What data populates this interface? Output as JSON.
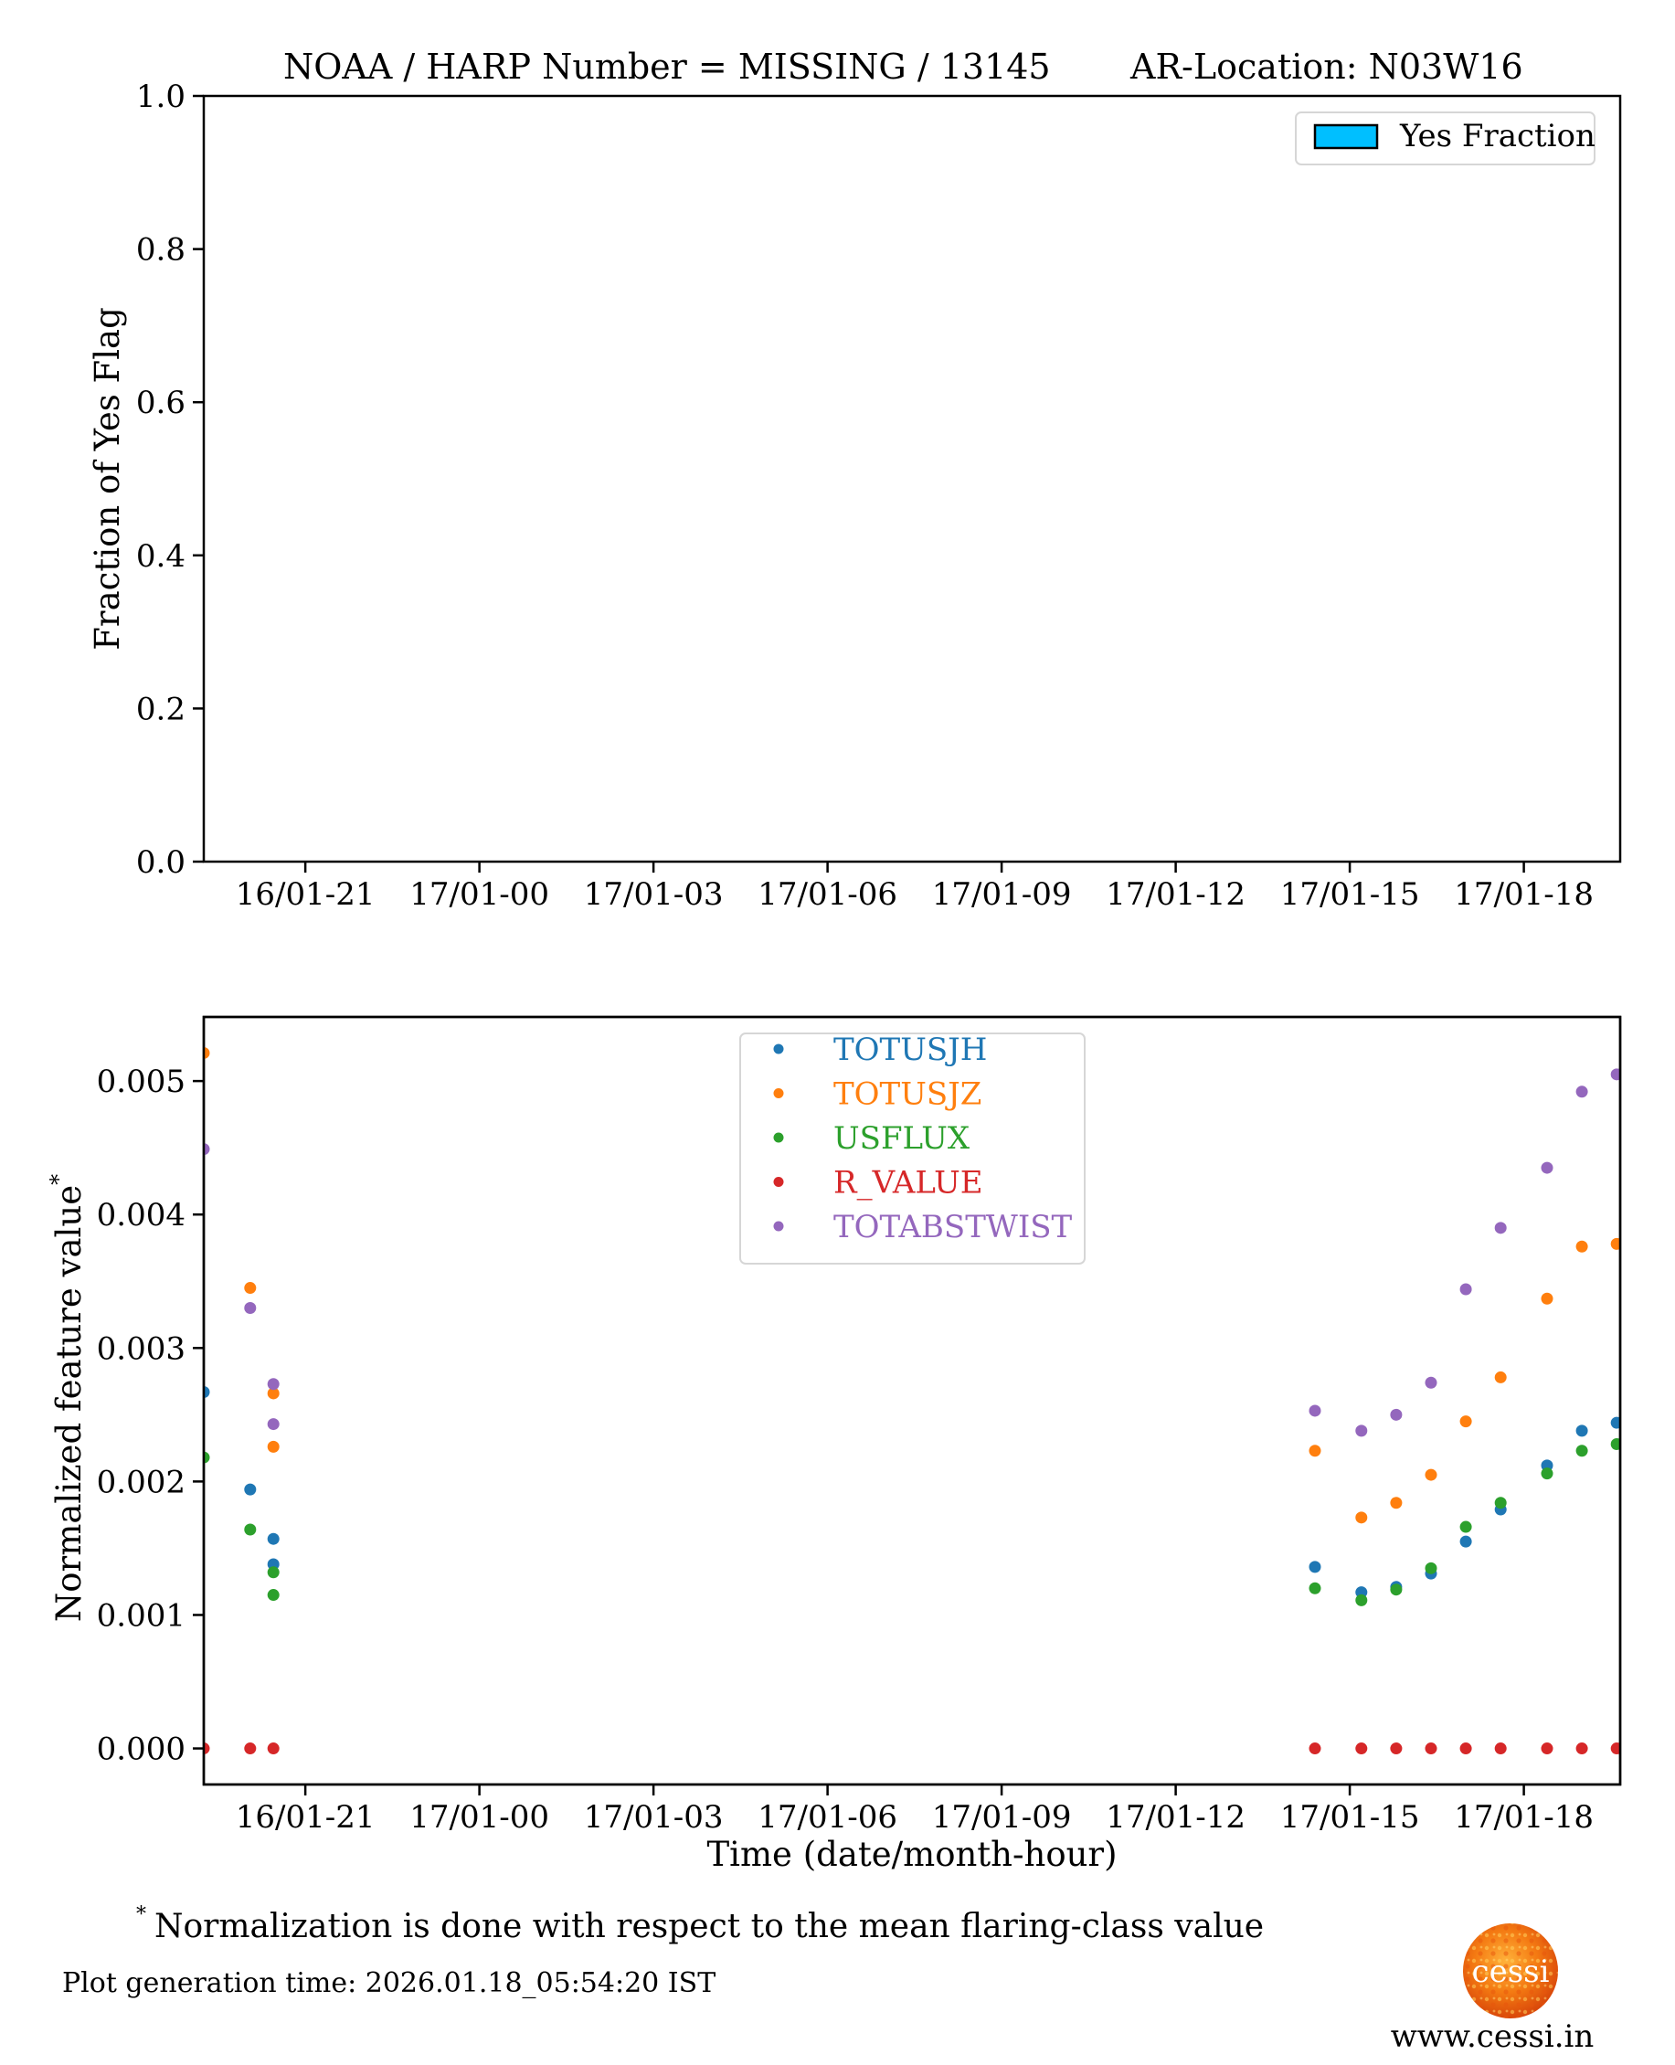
{
  "chart_data": [
    {
      "type": "bar",
      "title": "NOAA / HARP Number = MISSING / 13145       AR-Location: N03W16",
      "title_left": "NOAA / HARP Number = MISSING / 13145",
      "title_right": "AR-Location: N03W16",
      "xlabel": "",
      "ylabel": "Fraction of Yes Flag",
      "ylim": [
        0.0,
        1.0
      ],
      "yticks": [
        0.0,
        0.2,
        0.4,
        0.6,
        0.8,
        1.0
      ],
      "ytick_labels": [
        "0.0",
        "0.2",
        "0.4",
        "0.6",
        "0.8",
        "1.0"
      ],
      "x_units": "hours since 16/01 21:00",
      "xlim": [
        -1.75,
        22.66
      ],
      "xticks": [
        0,
        3,
        6,
        9,
        12,
        15,
        18,
        21
      ],
      "xtick_labels": [
        "16/01-21",
        "17/01-00",
        "17/01-03",
        "17/01-06",
        "17/01-09",
        "17/01-12",
        "17/01-15",
        "17/01-18"
      ],
      "series": [
        {
          "name": "Yes Fraction",
          "color": "#00bfff",
          "edgecolor": "#000000",
          "values": []
        }
      ],
      "legend": {
        "placement": "top-right",
        "entries": [
          "Yes Fraction"
        ]
      },
      "grid": false
    },
    {
      "type": "scatter",
      "title": "",
      "xlabel": "Time (date/month-hour)",
      "ylabel": "Normalized feature value",
      "ylabel_superscript": "*",
      "ylim": [
        -0.00027,
        0.00548
      ],
      "yticks": [
        0.0,
        0.001,
        0.002,
        0.003,
        0.004,
        0.005
      ],
      "ytick_labels": [
        "0.000",
        "0.001",
        "0.002",
        "0.003",
        "0.004",
        "0.005"
      ],
      "x_units": "hours since 16/01 21:00",
      "xlim": [
        -1.75,
        22.66
      ],
      "xticks": [
        0,
        3,
        6,
        9,
        12,
        15,
        18,
        21
      ],
      "xtick_labels": [
        "16/01-21",
        "17/01-00",
        "17/01-03",
        "17/01-06",
        "17/01-09",
        "17/01-12",
        "17/01-15",
        "17/01-18"
      ],
      "x": [
        -1.75,
        -0.95,
        -0.55,
        -0.55,
        17.4,
        18.2,
        18.8,
        19.4,
        20.0,
        20.6,
        21.4,
        22.0,
        22.6
      ],
      "series": [
        {
          "name": "TOTUSJH",
          "color": "#1f77b4",
          "points": [
            [
              -1.75,
              0.00267
            ],
            [
              -0.95,
              0.00194
            ],
            [
              -0.55,
              0.00157
            ],
            [
              -0.55,
              0.00138
            ],
            [
              17.4,
              0.00136
            ],
            [
              18.2,
              0.00117
            ],
            [
              18.8,
              0.00121
            ],
            [
              19.4,
              0.00131
            ],
            [
              20.0,
              0.00155
            ],
            [
              20.6,
              0.00179
            ],
            [
              21.4,
              0.00212
            ],
            [
              22.0,
              0.00238
            ],
            [
              22.6,
              0.00244
            ]
          ]
        },
        {
          "name": "TOTUSJZ",
          "color": "#ff7f0e",
          "points": [
            [
              -1.75,
              0.00521
            ],
            [
              -0.95,
              0.00345
            ],
            [
              -0.55,
              0.00266
            ],
            [
              -0.55,
              0.00226
            ],
            [
              17.4,
              0.00223
            ],
            [
              18.2,
              0.00173
            ],
            [
              18.8,
              0.00184
            ],
            [
              19.4,
              0.00205
            ],
            [
              20.0,
              0.00245
            ],
            [
              20.6,
              0.00278
            ],
            [
              21.4,
              0.00337
            ],
            [
              22.0,
              0.00376
            ],
            [
              22.6,
              0.00378
            ]
          ]
        },
        {
          "name": "USFLUX",
          "color": "#2ca02c",
          "points": [
            [
              -1.75,
              0.00218
            ],
            [
              -0.95,
              0.00164
            ],
            [
              -0.55,
              0.00132
            ],
            [
              -0.55,
              0.00115
            ],
            [
              17.4,
              0.0012
            ],
            [
              18.2,
              0.00111
            ],
            [
              18.8,
              0.00119
            ],
            [
              19.4,
              0.00135
            ],
            [
              20.0,
              0.00166
            ],
            [
              20.6,
              0.00184
            ],
            [
              21.4,
              0.00206
            ],
            [
              22.0,
              0.00223
            ],
            [
              22.6,
              0.00228
            ]
          ]
        },
        {
          "name": "R_VALUE",
          "color": "#d62728",
          "points": [
            [
              -1.75,
              0.0
            ],
            [
              -0.95,
              0.0
            ],
            [
              -0.55,
              0.0
            ],
            [
              17.4,
              0.0
            ],
            [
              18.2,
              0.0
            ],
            [
              18.8,
              0.0
            ],
            [
              19.4,
              0.0
            ],
            [
              20.0,
              0.0
            ],
            [
              20.6,
              0.0
            ],
            [
              21.4,
              0.0
            ],
            [
              22.0,
              0.0
            ],
            [
              22.6,
              0.0
            ]
          ]
        },
        {
          "name": "TOTABSTWIST",
          "color": "#9467bd",
          "points": [
            [
              -1.75,
              0.00449
            ],
            [
              -0.95,
              0.0033
            ],
            [
              -0.55,
              0.00273
            ],
            [
              -0.55,
              0.00243
            ],
            [
              17.4,
              0.00253
            ],
            [
              18.2,
              0.00238
            ],
            [
              18.8,
              0.0025
            ],
            [
              19.4,
              0.00274
            ],
            [
              20.0,
              0.00344
            ],
            [
              20.6,
              0.0039
            ],
            [
              21.4,
              0.00435
            ],
            [
              22.0,
              0.00492
            ],
            [
              22.6,
              0.00505
            ]
          ]
        }
      ],
      "legend": {
        "placement": "top-center",
        "entries": [
          "TOTUSJH",
          "TOTUSJZ",
          "USFLUX",
          "R_VALUE",
          "TOTABSTWIST"
        ]
      },
      "grid": false
    }
  ],
  "footer": {
    "footnote_marker": "*",
    "footnote": "Normalization is done with respect to the mean flaring-class value",
    "generation_time": "Plot generation time: 2026.01.18_05:54:20 IST",
    "logo_text": "cessi",
    "website": "www.cessi.in"
  }
}
